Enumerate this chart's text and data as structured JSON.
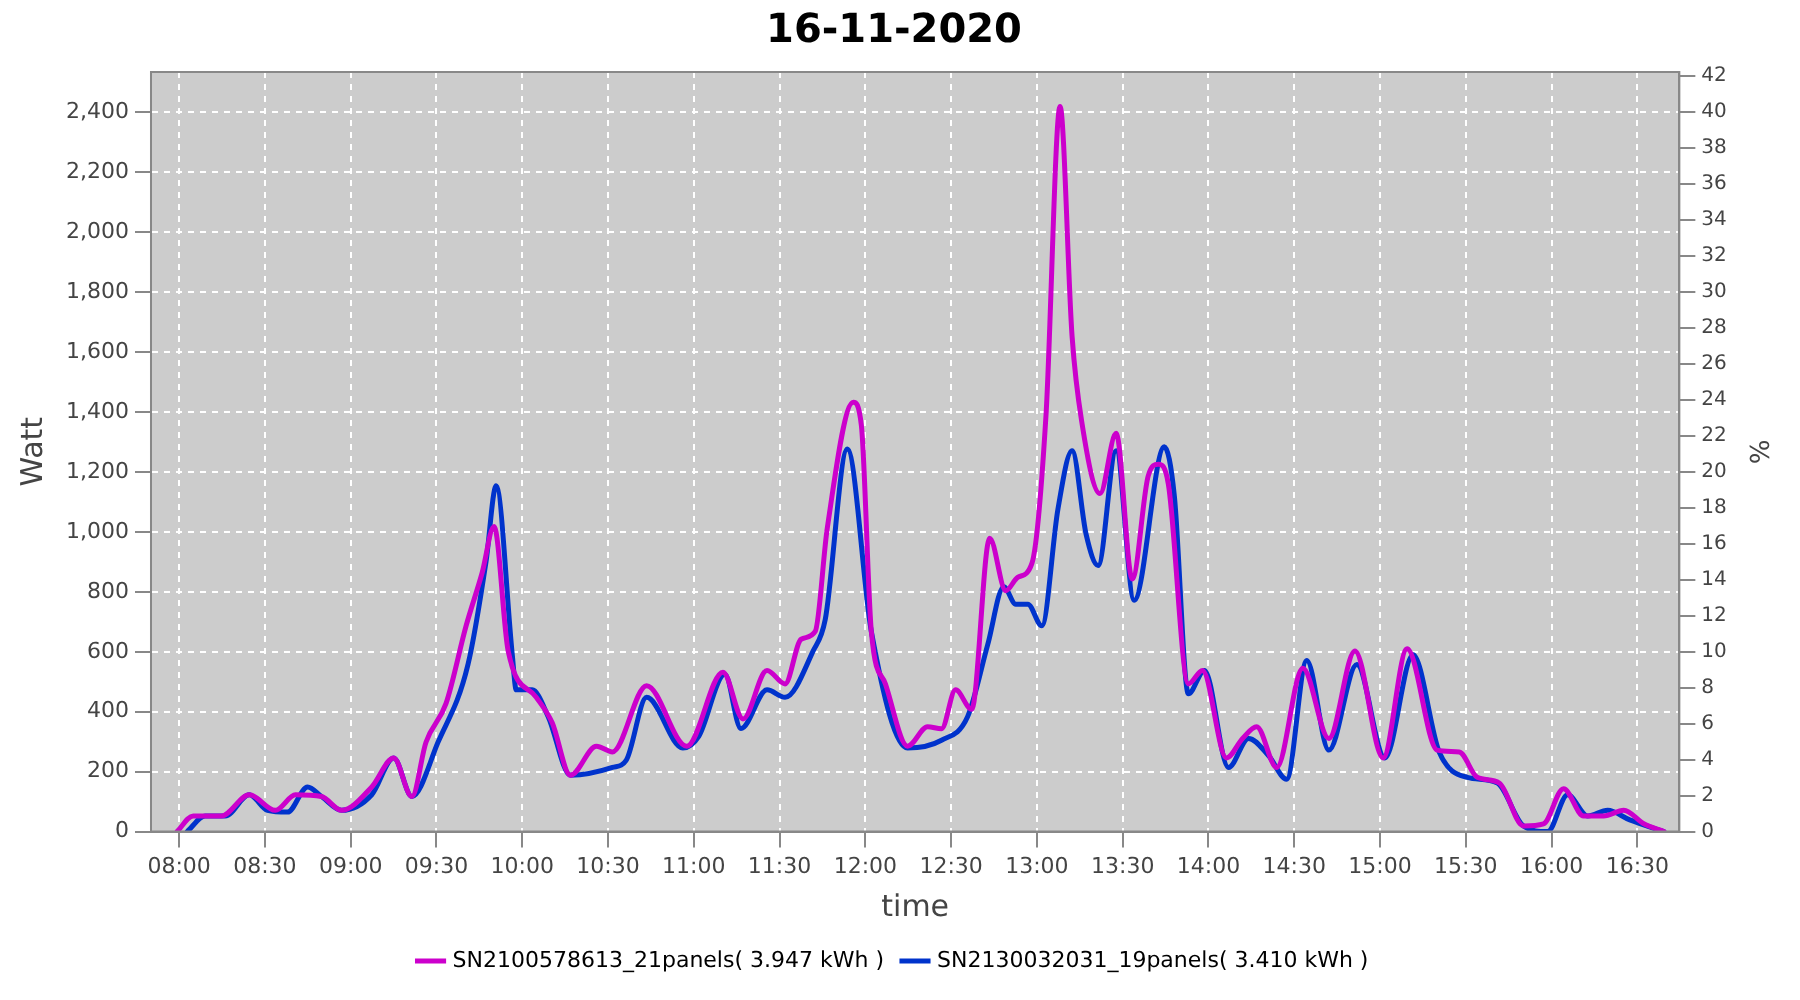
{
  "chart_data": {
    "type": "line",
    "title": "16-11-2020",
    "xlabel": "time",
    "ylabel": "Watt",
    "y2label": "%",
    "xlim": [
      7.836,
      16.745
    ],
    "xticks": [
      {
        "value": 8,
        "label": "08:00"
      },
      {
        "value": 8.5,
        "label": "08:30"
      },
      {
        "value": 9,
        "label": "09:00"
      },
      {
        "value": 9.5,
        "label": "09:30"
      },
      {
        "value": 10,
        "label": "10:00"
      },
      {
        "value": 10.5,
        "label": "10:30"
      },
      {
        "value": 11,
        "label": "11:00"
      },
      {
        "value": 11.5,
        "label": "11:30"
      },
      {
        "value": 12,
        "label": "12:00"
      },
      {
        "value": 12.5,
        "label": "12:30"
      },
      {
        "value": 13,
        "label": "13:00"
      },
      {
        "value": 13.5,
        "label": "13:30"
      },
      {
        "value": 14,
        "label": "14:00"
      },
      {
        "value": 14.5,
        "label": "14:30"
      },
      {
        "value": 15,
        "label": "15:00"
      },
      {
        "value": 15.5,
        "label": "15:30"
      },
      {
        "value": 16,
        "label": "16:00"
      },
      {
        "value": 16.5,
        "label": "16:30"
      }
    ],
    "ylim": [
      0,
      2535
    ],
    "yticks": [
      0,
      200,
      400,
      600,
      800,
      {
        "value": 1000,
        "label": "1,000"
      },
      {
        "value": 1200,
        "label": "1,200"
      },
      {
        "value": 1400,
        "label": "1,400"
      },
      {
        "value": 1600,
        "label": "1,600"
      },
      {
        "value": 1800,
        "label": "1,800"
      },
      {
        "value": 2000,
        "label": "2,000"
      },
      {
        "value": 2200,
        "label": "2,200"
      },
      {
        "value": 2400,
        "label": "2,400"
      }
    ],
    "y2lim": [
      0,
      42.2
    ],
    "y2ticks": [
      0,
      2,
      4,
      6,
      8,
      10,
      12,
      14,
      16,
      18,
      20,
      22,
      24,
      26,
      28,
      30,
      32,
      34,
      36,
      38,
      40,
      42
    ],
    "grid": true,
    "legend": "bottom",
    "series": [
      {
        "name": "SN2100578613_21panels( 3.947 kWh )",
        "color": "#cc00cc",
        "x": [
          7.988,
          8.082,
          8.246,
          8.409,
          8.561,
          8.678,
          8.83,
          8.947,
          9.123,
          9.251,
          9.357,
          9.439,
          9.556,
          9.673,
          9.766,
          9.836,
          9.918,
          10.082,
          10.175,
          10.281,
          10.433,
          10.526,
          10.725,
          10.959,
          11.17,
          11.287,
          11.427,
          11.532,
          11.626,
          11.708,
          11.778,
          11.93,
          11.977,
          12.035,
          12.117,
          12.246,
          12.363,
          12.444,
          12.526,
          12.62,
          12.725,
          12.819,
          12.889,
          12.971,
          13.053,
          13.135,
          13.205,
          13.263,
          13.368,
          13.462,
          13.556,
          13.649,
          13.708,
          13.766,
          13.883,
          13.965,
          14.105,
          14.199,
          14.281,
          14.398,
          14.55,
          14.702,
          14.854,
          15.018,
          15.158,
          15.333,
          15.462,
          15.567,
          15.696,
          15.836,
          15.953,
          16.07,
          16.187,
          16.304,
          16.421,
          16.538,
          16.655
        ],
        "values": [
          0,
          52,
          52,
          123,
          71,
          123,
          117,
          71,
          149,
          246,
          117,
          298,
          428,
          687,
          863,
          1018,
          603,
          448,
          363,
          188,
          285,
          266,
          487,
          285,
          532,
          376,
          538,
          493,
          642,
          668,
          1012,
          1433,
          1355,
          668,
          493,
          285,
          350,
          343,
          473,
          408,
          979,
          804,
          849,
          895,
          1388,
          2420,
          1654,
          1362,
          1128,
          1329,
          843,
          1187,
          1226,
          1161,
          493,
          538,
          246,
          311,
          350,
          214,
          545,
          311,
          603,
          246,
          610,
          272,
          266,
          181,
          162,
          19,
          26,
          143,
          52,
          52,
          71,
          26,
          0
        ]
      },
      {
        "name": "SN2130032031_19panels( 3.410 kWh )",
        "color": "#0033cc",
        "x": [
          8.047,
          8.152,
          8.269,
          8.409,
          8.515,
          8.632,
          8.749,
          8.83,
          8.947,
          9.123,
          9.251,
          9.357,
          9.509,
          9.684,
          9.789,
          9.848,
          9.942,
          9.965,
          10.058,
          10.152,
          10.281,
          10.526,
          10.608,
          10.725,
          10.936,
          11.029,
          11.181,
          11.275,
          11.427,
          11.532,
          11.696,
          11.766,
          11.895,
          12.035,
          12.246,
          12.444,
          12.596,
          12.713,
          12.807,
          12.877,
          12.947,
          13.029,
          13.123,
          13.205,
          13.287,
          13.357,
          13.462,
          13.567,
          13.743,
          13.801,
          13.883,
          13.977,
          14.117,
          14.234,
          14.351,
          14.456,
          14.573,
          14.702,
          14.865,
          15.029,
          15.193,
          15.345,
          15.509,
          15.684,
          15.836,
          15.977,
          16.094,
          16.211,
          16.327,
          16.456,
          16.655
        ],
        "values": [
          0,
          52,
          52,
          123,
          71,
          65,
          149,
          117,
          71,
          123,
          246,
          117,
          298,
          558,
          901,
          1154,
          590,
          473,
          473,
          383,
          188,
          214,
          240,
          448,
          279,
          318,
          525,
          344,
          473,
          448,
          603,
          707,
          1277,
          668,
          279,
          305,
          383,
          623,
          817,
          759,
          759,
          687,
          1077,
          1271,
          992,
          888,
          1271,
          772,
          1284,
          1122,
          460,
          538,
          214,
          311,
          253,
          175,
          571,
          272,
          558,
          246,
          590,
          266,
          181,
          162,
          19,
          0,
          123,
          52,
          71,
          39,
          0
        ]
      }
    ]
  }
}
